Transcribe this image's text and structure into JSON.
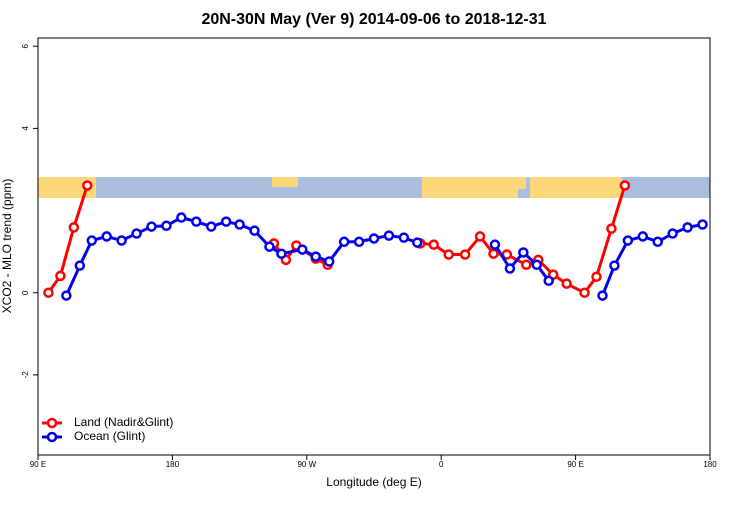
{
  "chart_data": {
    "type": "line",
    "title": "20N-30N May (Ver 9)   2014-09-06 to 2018-12-31",
    "xlabel": "Longitude (deg E)",
    "ylabel": "XCO2 - MLO trend (ppm)",
    "xlim": [
      90,
      540
    ],
    "xticks": [
      {
        "value": 90,
        "label": "90 E"
      },
      180,
      {
        "value": 270,
        "label": "90 W"
      },
      {
        "value": 360,
        "label": "0"
      },
      {
        "value": 450,
        "label": "90 E"
      },
      {
        "value": 540,
        "label": "180"
      }
    ],
    "ylim": [
      -3.95,
      6.2
    ],
    "yticks": [
      -2,
      0,
      4,
      6
    ],
    "legend": "bottom-left",
    "series": [
      {
        "name": "Land (Nadir&Glint)",
        "color": "#ff0000",
        "x": [
          97,
          105,
          114,
          123,
          null,
          248,
          256,
          263,
          276,
          284,
          null,
          346,
          355,
          365,
          376,
          386,
          395,
          404,
          417,
          425,
          435,
          444,
          456,
          464,
          474,
          483
        ],
        "values": [
          0,
          0.41,
          1.59,
          2.61,
          null,
          1.2,
          0.8,
          1.15,
          0.83,
          0.68,
          null,
          1.2,
          1.17,
          0.93,
          0.93,
          1.37,
          0.95,
          0.93,
          0.68,
          0.8,
          0.44,
          0.22,
          0,
          0.39,
          1.56,
          2.61
        ]
      },
      {
        "name": "Ocean (Glint)",
        "color": "#0000ee",
        "x": [
          109,
          118,
          126,
          136,
          146,
          156,
          166,
          176,
          186,
          196,
          206,
          216,
          225,
          235,
          245,
          253,
          267,
          276,
          285,
          295,
          305,
          315,
          325,
          335,
          344,
          null,
          396,
          406,
          415,
          424,
          432,
          null,
          468,
          476,
          485,
          495,
          505,
          515,
          525,
          535
        ],
        "values": [
          -0.07,
          0.66,
          1.27,
          1.37,
          1.27,
          1.44,
          1.61,
          1.63,
          1.83,
          1.73,
          1.61,
          1.73,
          1.66,
          1.51,
          1.12,
          0.95,
          1.05,
          0.88,
          0.76,
          1.24,
          1.24,
          1.32,
          1.39,
          1.34,
          1.22,
          null,
          1.17,
          0.59,
          0.98,
          0.68,
          0.29,
          null,
          -0.07,
          0.66,
          1.27,
          1.37,
          1.24,
          1.44,
          1.59,
          1.66
        ]
      }
    ]
  }
}
